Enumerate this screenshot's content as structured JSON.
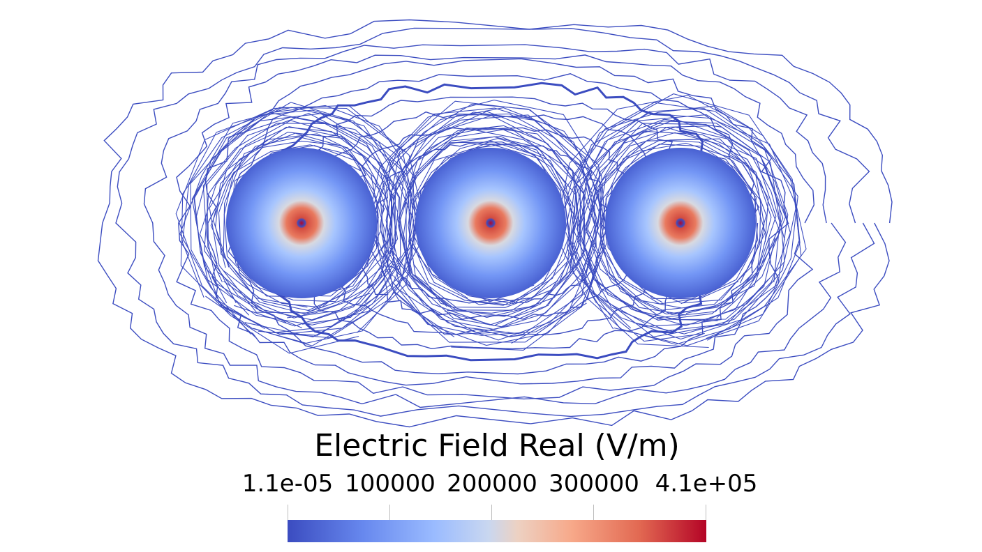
{
  "legend": {
    "title": "Electric Field Real (V/m)",
    "tick_labels": [
      "1.1e-05",
      "100000",
      "200000",
      "300000",
      "4.1e+05"
    ],
    "range": [
      1.1e-05,
      410000
    ],
    "colormap": "cool-to-warm",
    "colors": {
      "low": "#3b4cc0",
      "mid": "#dddddd",
      "high": "#b40426",
      "contour": "#3b4cc0"
    }
  },
  "field": {
    "sources": 3,
    "peak_value": 410000
  }
}
